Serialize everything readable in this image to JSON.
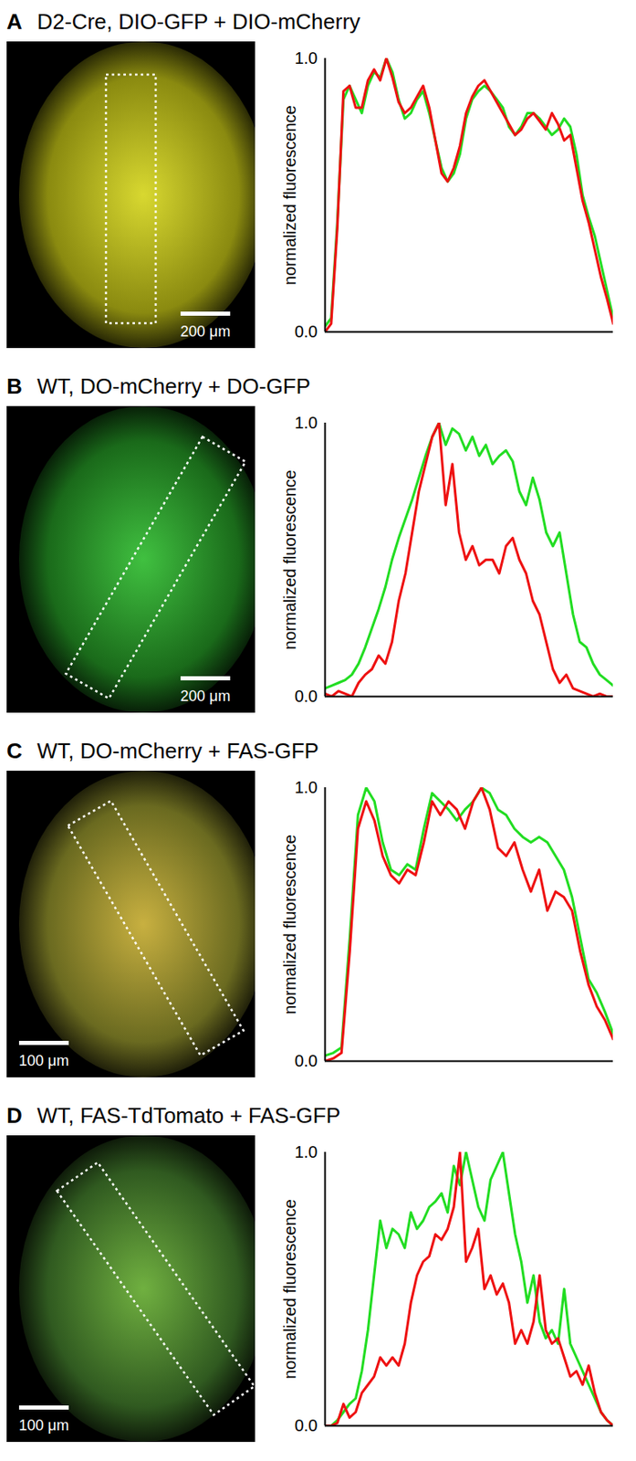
{
  "chart_data": [
    {
      "type": "line",
      "label": "A",
      "title": "D2-Cre, DIO-GFP + DIO-mCherry",
      "annotations": [
        "200 μm"
      ],
      "y_label": "normalized fluorescence",
      "ylim": [
        0,
        1
      ],
      "yticks": [
        0,
        1
      ],
      "xlim": [
        0,
        47
      ],
      "tick_labels": "y",
      "x": [
        0,
        1,
        2,
        3,
        4,
        5,
        6,
        7,
        8,
        9,
        10,
        11,
        12,
        13,
        14,
        15,
        16,
        17,
        18,
        19,
        20,
        21,
        22,
        23,
        24,
        25,
        26,
        27,
        28,
        29,
        30,
        31,
        32,
        33,
        34,
        35,
        36,
        37,
        38,
        39,
        40,
        41,
        42,
        43,
        44,
        45,
        46,
        47
      ],
      "series": [
        {
          "color": "#22dd22",
          "values": [
            0.02,
            0.05,
            0.4,
            0.85,
            0.9,
            0.85,
            0.8,
            0.9,
            0.95,
            0.93,
            1.0,
            0.95,
            0.85,
            0.78,
            0.8,
            0.85,
            0.88,
            0.8,
            0.7,
            0.6,
            0.55,
            0.58,
            0.65,
            0.78,
            0.85,
            0.88,
            0.9,
            0.88,
            0.85,
            0.82,
            0.75,
            0.72,
            0.75,
            0.8,
            0.8,
            0.78,
            0.75,
            0.72,
            0.74,
            0.78,
            0.75,
            0.65,
            0.5,
            0.42,
            0.35,
            0.25,
            0.15,
            0.05
          ]
        },
        {
          "color": "#ee1111",
          "values": [
            0.0,
            0.03,
            0.38,
            0.88,
            0.9,
            0.82,
            0.82,
            0.92,
            0.96,
            0.92,
            1.0,
            0.93,
            0.84,
            0.8,
            0.82,
            0.86,
            0.9,
            0.82,
            0.7,
            0.58,
            0.55,
            0.6,
            0.68,
            0.8,
            0.86,
            0.9,
            0.92,
            0.88,
            0.84,
            0.8,
            0.76,
            0.72,
            0.74,
            0.78,
            0.8,
            0.77,
            0.74,
            0.8,
            0.76,
            0.7,
            0.72,
            0.6,
            0.48,
            0.4,
            0.3,
            0.2,
            0.12,
            0.03
          ]
        }
      ]
    },
    {
      "type": "line",
      "label": "B",
      "title": "WT, DO-mCherry + DO-GFP",
      "annotations": [
        "200 μm"
      ],
      "y_label": "normalized fluorescence",
      "ylim": [
        0,
        1
      ],
      "yticks": [
        0,
        1
      ],
      "xlim": [
        0,
        43
      ],
      "tick_labels": "y",
      "x": [
        0,
        1,
        2,
        3,
        4,
        5,
        6,
        7,
        8,
        9,
        10,
        11,
        12,
        13,
        14,
        15,
        16,
        17,
        18,
        19,
        20,
        21,
        22,
        23,
        24,
        25,
        26,
        27,
        28,
        29,
        30,
        31,
        32,
        33,
        34,
        35,
        36,
        37,
        38,
        39,
        40,
        41,
        42,
        43
      ],
      "series": [
        {
          "color": "#22dd22",
          "values": [
            0.03,
            0.04,
            0.05,
            0.06,
            0.08,
            0.12,
            0.18,
            0.25,
            0.32,
            0.4,
            0.5,
            0.58,
            0.65,
            0.72,
            0.8,
            0.88,
            0.95,
            1.0,
            0.92,
            0.98,
            0.96,
            0.9,
            0.95,
            0.88,
            0.92,
            0.85,
            0.88,
            0.9,
            0.86,
            0.75,
            0.7,
            0.8,
            0.72,
            0.6,
            0.55,
            0.6,
            0.45,
            0.3,
            0.2,
            0.18,
            0.12,
            0.08,
            0.06,
            0.04
          ]
        },
        {
          "color": "#ee1111",
          "values": [
            0.01,
            0.0,
            0.02,
            0.01,
            0.0,
            0.05,
            0.08,
            0.1,
            0.15,
            0.12,
            0.2,
            0.35,
            0.45,
            0.6,
            0.75,
            0.85,
            0.95,
            1.0,
            0.7,
            0.85,
            0.6,
            0.5,
            0.55,
            0.48,
            0.5,
            0.5,
            0.45,
            0.55,
            0.58,
            0.5,
            0.45,
            0.35,
            0.3,
            0.2,
            0.1,
            0.05,
            0.08,
            0.03,
            0.02,
            0.01,
            0.0,
            0.01,
            0.0,
            0.0
          ]
        }
      ]
    },
    {
      "type": "line",
      "label": "C",
      "title": "WT, DO-mCherry + FAS-GFP",
      "annotations": [
        "100 μm"
      ],
      "y_label": "normalized fluorescence",
      "ylim": [
        0,
        1
      ],
      "yticks": [
        0,
        1
      ],
      "xlim": [
        0,
        35
      ],
      "tick_labels": "y",
      "x": [
        0,
        1,
        2,
        3,
        4,
        5,
        6,
        7,
        8,
        9,
        10,
        11,
        12,
        13,
        14,
        15,
        16,
        17,
        18,
        19,
        20,
        21,
        22,
        23,
        24,
        25,
        26,
        27,
        28,
        29,
        30,
        31,
        32,
        33,
        34,
        35
      ],
      "series": [
        {
          "color": "#22dd22",
          "values": [
            0.02,
            0.03,
            0.05,
            0.45,
            0.9,
            1.0,
            0.95,
            0.8,
            0.7,
            0.68,
            0.72,
            0.7,
            0.85,
            0.98,
            0.95,
            0.92,
            0.88,
            0.92,
            0.95,
            1.0,
            0.98,
            0.92,
            0.9,
            0.85,
            0.82,
            0.8,
            0.82,
            0.8,
            0.75,
            0.7,
            0.6,
            0.45,
            0.3,
            0.25,
            0.18,
            0.1
          ]
        },
        {
          "color": "#ee1111",
          "values": [
            0.0,
            0.01,
            0.03,
            0.4,
            0.85,
            0.95,
            0.88,
            0.75,
            0.68,
            0.65,
            0.7,
            0.68,
            0.8,
            0.95,
            0.9,
            0.95,
            0.92,
            0.85,
            0.95,
            1.0,
            0.92,
            0.78,
            0.75,
            0.8,
            0.7,
            0.62,
            0.7,
            0.55,
            0.62,
            0.6,
            0.55,
            0.4,
            0.28,
            0.2,
            0.15,
            0.08
          ]
        }
      ]
    },
    {
      "type": "line",
      "label": "D",
      "title": "WT, FAS-TdTomato + FAS-GFP",
      "annotations": [
        "100 μm"
      ],
      "y_label": "normalized fluorescence",
      "ylim": [
        0,
        1
      ],
      "yticks": [
        0,
        1
      ],
      "xlim": [
        0,
        47
      ],
      "tick_labels": "y",
      "x": [
        0,
        1,
        2,
        3,
        4,
        5,
        6,
        7,
        8,
        9,
        10,
        11,
        12,
        13,
        14,
        15,
        16,
        17,
        18,
        19,
        20,
        21,
        22,
        23,
        24,
        25,
        26,
        27,
        28,
        29,
        30,
        31,
        32,
        33,
        34,
        35,
        36,
        37,
        38,
        39,
        40,
        41,
        42,
        43,
        44,
        45,
        46,
        47
      ],
      "series": [
        {
          "color": "#22dd22",
          "values": [
            0,
            0,
            0.02,
            0.05,
            0.08,
            0.1,
            0.2,
            0.35,
            0.55,
            0.75,
            0.65,
            0.72,
            0.7,
            0.65,
            0.78,
            0.72,
            0.75,
            0.8,
            0.82,
            0.85,
            0.78,
            0.95,
            0.88,
            1.0,
            0.9,
            0.8,
            0.75,
            0.9,
            0.95,
            1.0,
            0.85,
            0.7,
            0.6,
            0.45,
            0.55,
            0.38,
            0.32,
            0.35,
            0.3,
            0.5,
            0.3,
            0.25,
            0.2,
            0.15,
            0.1,
            0.05,
            0.02,
            0.0
          ]
        },
        {
          "color": "#ee1111",
          "values": [
            0,
            0,
            0.01,
            0.08,
            0.03,
            0.05,
            0.12,
            0.15,
            0.18,
            0.25,
            0.22,
            0.25,
            0.22,
            0.3,
            0.45,
            0.55,
            0.6,
            0.62,
            0.7,
            0.68,
            0.72,
            0.8,
            1.0,
            0.6,
            0.65,
            0.72,
            0.5,
            0.55,
            0.48,
            0.52,
            0.45,
            0.3,
            0.35,
            0.3,
            0.38,
            0.55,
            0.35,
            0.3,
            0.32,
            0.25,
            0.18,
            0.2,
            0.15,
            0.22,
            0.12,
            0.05,
            0.02,
            0.0
          ]
        }
      ]
    }
  ]
}
